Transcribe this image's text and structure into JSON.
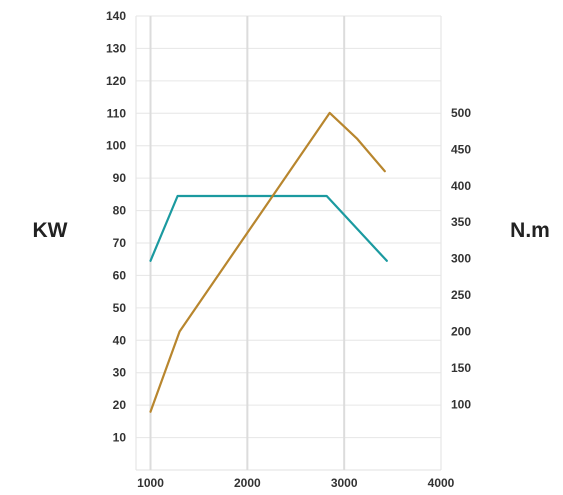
{
  "chart_data": {
    "type": "line",
    "x_ticks": [
      1000,
      2000,
      3000,
      4000
    ],
    "xlim": [
      850,
      4000
    ],
    "left_axis": {
      "label": "KW",
      "ylim": [
        0,
        140
      ],
      "ticks": [
        10,
        20,
        30,
        40,
        50,
        60,
        70,
        80,
        90,
        100,
        110,
        120,
        130,
        140
      ]
    },
    "right_axis": {
      "label": "N.m",
      "ylim": [
        10,
        633
      ],
      "ticks": [
        100,
        150,
        200,
        250,
        300,
        350,
        400,
        450,
        500
      ]
    },
    "grid": {
      "vertical": true,
      "horizontal": true
    },
    "series": [
      {
        "axis": "left",
        "color": "#1b9aa0",
        "points": [
          [
            1000,
            64.5
          ],
          [
            1280,
            84.5
          ],
          [
            2820,
            84.5
          ],
          [
            3440,
            64.5
          ]
        ]
      },
      {
        "axis": "right",
        "color": "#b8862e",
        "points": [
          [
            1000,
            90
          ],
          [
            1300,
            200
          ],
          [
            2850,
            500
          ],
          [
            3130,
            465
          ],
          [
            3420,
            420
          ]
        ]
      }
    ]
  }
}
